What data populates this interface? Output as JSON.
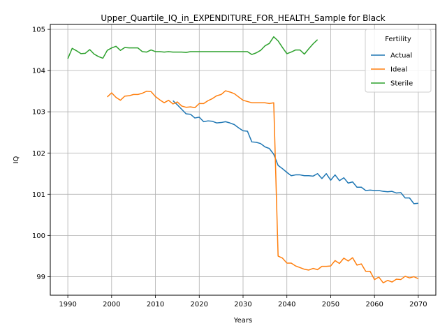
{
  "chart_data": {
    "type": "line",
    "title": "Upper_Quartile_IQ_in_EXPENDITURE_FOR_HEALTH_Sample for Black",
    "xlabel": "Years",
    "ylabel": "IQ",
    "xlim": [
      1986,
      2074
    ],
    "ylim": [
      98.55,
      105.12
    ],
    "xticks": [
      1990,
      2000,
      2010,
      2020,
      2030,
      2040,
      2050,
      2060,
      2070
    ],
    "yticks": [
      99,
      100,
      101,
      102,
      103,
      104,
      105
    ],
    "grid": true,
    "legend": {
      "title": "Fertility",
      "placement": "top-right"
    },
    "series": [
      {
        "name": "Actual",
        "color": "#1f77b4",
        "x": [
          2014,
          2015,
          2016,
          2017,
          2018,
          2019,
          2020,
          2021,
          2022,
          2023,
          2024,
          2025,
          2026,
          2027,
          2028,
          2029,
          2030,
          2031,
          2032,
          2033,
          2034,
          2035,
          2036,
          2037,
          2038,
          2039,
          2040,
          2041,
          2042,
          2043,
          2044,
          2045,
          2046,
          2047,
          2048,
          2049,
          2050,
          2051,
          2052,
          2053,
          2054,
          2055,
          2056,
          2057,
          2058,
          2059,
          2060,
          2061,
          2062,
          2063,
          2064,
          2065,
          2066,
          2067,
          2068,
          2069,
          2070
        ],
        "y": [
          103.27,
          103.17,
          103.06,
          102.95,
          102.94,
          102.85,
          102.87,
          102.76,
          102.78,
          102.77,
          102.73,
          102.74,
          102.76,
          102.73,
          102.69,
          102.61,
          102.54,
          102.53,
          102.27,
          102.26,
          102.23,
          102.15,
          102.11,
          101.97,
          101.7,
          101.62,
          101.53,
          101.45,
          101.47,
          101.47,
          101.45,
          101.45,
          101.44,
          101.5,
          101.38,
          101.5,
          101.34,
          101.47,
          101.33,
          101.4,
          101.27,
          101.3,
          101.17,
          101.17,
          101.09,
          101.1,
          101.09,
          101.09,
          101.07,
          101.06,
          101.07,
          101.03,
          101.04,
          100.91,
          100.91,
          100.77,
          100.78
        ]
      },
      {
        "name": "Ideal",
        "color": "#ff7f0e",
        "x": [
          1999,
          2000,
          2001,
          2002,
          2003,
          2004,
          2005,
          2006,
          2007,
          2008,
          2009,
          2010,
          2011,
          2012,
          2013,
          2014,
          2015,
          2016,
          2017,
          2018,
          2019,
          2020,
          2021,
          2022,
          2023,
          2024,
          2025,
          2026,
          2027,
          2028,
          2029,
          2030,
          2031,
          2032,
          2033,
          2034,
          2035,
          2036,
          2037,
          2038,
          2039,
          2040,
          2041,
          2042,
          2043,
          2044,
          2045,
          2046,
          2047,
          2048,
          2049,
          2050,
          2051,
          2052,
          2053,
          2054,
          2055,
          2056,
          2057,
          2058,
          2059,
          2060,
          2061,
          2062,
          2063,
          2064,
          2065,
          2066,
          2067,
          2068,
          2069,
          2070
        ],
        "y": [
          103.36,
          103.46,
          103.35,
          103.28,
          103.38,
          103.39,
          103.42,
          103.42,
          103.45,
          103.5,
          103.49,
          103.37,
          103.29,
          103.22,
          103.28,
          103.19,
          103.24,
          103.14,
          103.11,
          103.12,
          103.1,
          103.2,
          103.2,
          103.27,
          103.32,
          103.39,
          103.42,
          103.51,
          103.48,
          103.44,
          103.36,
          103.28,
          103.25,
          103.22,
          103.22,
          103.22,
          103.22,
          103.2,
          103.22,
          99.5,
          99.45,
          99.33,
          99.33,
          99.26,
          99.22,
          99.18,
          99.16,
          99.2,
          99.17,
          99.25,
          99.25,
          99.26,
          99.39,
          99.32,
          99.45,
          99.38,
          99.46,
          99.28,
          99.31,
          99.13,
          99.13,
          98.93,
          98.99,
          98.85,
          98.91,
          98.87,
          98.94,
          98.93,
          99.01,
          98.97,
          99.0,
          98.95
        ]
      },
      {
        "name": "Sterile",
        "color": "#2ca02c",
        "x": [
          1990,
          1991,
          1992,
          1993,
          1994,
          1995,
          1996,
          1997,
          1998,
          1999,
          2000,
          2001,
          2002,
          2003,
          2004,
          2005,
          2006,
          2007,
          2008,
          2009,
          2010,
          2011,
          2012,
          2013,
          2014,
          2015,
          2016,
          2017,
          2018,
          2019,
          2020,
          2021,
          2022,
          2023,
          2024,
          2025,
          2026,
          2027,
          2028,
          2029,
          2030,
          2031,
          2032,
          2033,
          2034,
          2035,
          2036,
          2037,
          2038,
          2039,
          2040,
          2041,
          2042,
          2043,
          2044,
          2045,
          2046,
          2047
        ],
        "y": [
          104.29,
          104.54,
          104.48,
          104.41,
          104.42,
          104.51,
          104.4,
          104.34,
          104.3,
          104.49,
          104.55,
          104.59,
          104.49,
          104.56,
          104.55,
          104.55,
          104.55,
          104.46,
          104.45,
          104.5,
          104.46,
          104.46,
          104.45,
          104.46,
          104.45,
          104.45,
          104.45,
          104.44,
          104.46,
          104.46,
          104.46,
          104.46,
          104.46,
          104.46,
          104.46,
          104.46,
          104.46,
          104.46,
          104.46,
          104.46,
          104.46,
          104.46,
          104.39,
          104.43,
          104.49,
          104.6,
          104.66,
          104.82,
          104.72,
          104.56,
          104.41,
          104.45,
          104.5,
          104.5,
          104.4,
          104.53,
          104.65,
          104.75
        ]
      }
    ]
  }
}
